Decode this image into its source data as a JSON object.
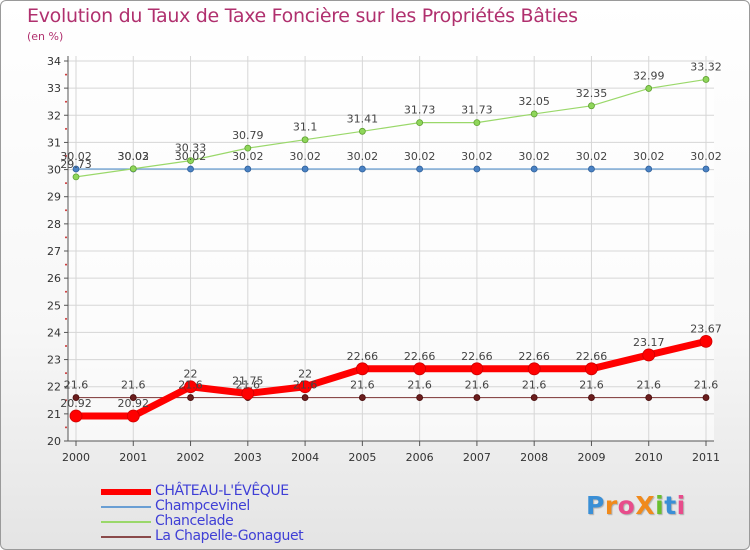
{
  "header": {
    "title": "Evolution du Taux de Taxe Foncière sur les Propriétés Bâties",
    "unit": "(en %)"
  },
  "chart_data": {
    "type": "line",
    "x": [
      "2000",
      "2001",
      "2002",
      "2003",
      "2004",
      "2005",
      "2006",
      "2007",
      "2008",
      "2009",
      "2010",
      "2011"
    ],
    "ylim": [
      20,
      34
    ],
    "yticks": [
      20,
      21,
      22,
      23,
      24,
      25,
      26,
      27,
      28,
      29,
      30,
      31,
      32,
      33,
      34
    ],
    "grid": true,
    "legend_position": "bottom-left",
    "series": [
      {
        "name": "CHâTEAU-L'EVêQUE",
        "color": "#ff0000",
        "values": [
          20.92,
          20.92,
          22,
          21.75,
          22,
          22.66,
          22.66,
          22.66,
          22.66,
          22.66,
          23.17,
          23.67
        ],
        "labels": [
          "20.92",
          "20.92",
          "22",
          "21.75",
          "22",
          "22.66",
          "22.66",
          "22.66",
          "22.66",
          "22.66",
          "23.17",
          "23.67"
        ]
      },
      {
        "name": "Champcevinel",
        "color": "#6a9fd4",
        "values": [
          30.02,
          30.02,
          30.02,
          30.02,
          30.02,
          30.02,
          30.02,
          30.02,
          30.02,
          30.02,
          30.02,
          30.02
        ],
        "labels": [
          "30.02",
          "30.02",
          "30.02",
          "30.02",
          "30.02",
          "30.02",
          "30.02",
          "30.02",
          "30.02",
          "30.02",
          "30.02",
          "30.02"
        ]
      },
      {
        "name": "Chancelade",
        "color": "#9ad86a",
        "values": [
          29.73,
          30.03,
          30.33,
          30.79,
          31.1,
          31.41,
          31.73,
          31.73,
          32.05,
          32.35,
          32.99,
          33.32
        ],
        "labels": [
          "29.73",
          "30.03",
          "30.33",
          "30.79",
          "31.1",
          "31.41",
          "31.73",
          "31.73",
          "32.05",
          "32.35",
          "32.99",
          "33.32"
        ]
      },
      {
        "name": "La Chapelle-Gonaguet",
        "color": "#8a4a4a",
        "values": [
          21.6,
          21.6,
          21.6,
          21.6,
          21.6,
          21.6,
          21.6,
          21.6,
          21.6,
          21.6,
          21.6,
          21.6
        ],
        "labels": [
          "21.6",
          "21.6",
          "21.6",
          "21.6",
          "21.6",
          "21.6",
          "21.6",
          "21.6",
          "21.6",
          "21.6",
          "21.6",
          "21.6"
        ]
      }
    ]
  },
  "legend": {
    "items": [
      {
        "label": "CHÂTEAU-L'ÉVÊQUE",
        "color": "#ff0000"
      },
      {
        "label": "Champcevinel",
        "color": "#6a9fd4"
      },
      {
        "label": "Chancelade",
        "color": "#9ad86a"
      },
      {
        "label": "La Chapelle-Gonaguet",
        "color": "#8a4a4a"
      }
    ]
  },
  "logo": {
    "text": "ProXiti",
    "colors": [
      "#3a8fd6",
      "#f08a1c",
      "#e84c8b",
      "#f08a1c",
      "#6abf2e",
      "#3a8fd6",
      "#e84c8b"
    ]
  }
}
